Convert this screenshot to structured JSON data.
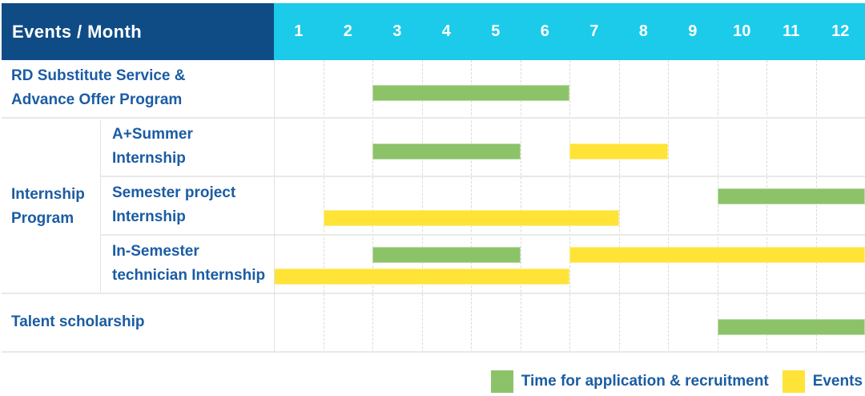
{
  "colors": {
    "navy": "#0F4C86",
    "cyan": "#1BCBE9",
    "green": "#8CC368",
    "yellow": "#FFE337",
    "text_blue": "#1B5CA4"
  },
  "header": {
    "title": "Events / Month"
  },
  "chart_data": {
    "type": "gantt",
    "unit": "month",
    "columns": [
      "1",
      "2",
      "3",
      "4",
      "5",
      "6",
      "7",
      "8",
      "9",
      "10",
      "11",
      "12"
    ],
    "group_label": "Internship\nProgram",
    "rows": [
      {
        "label": "RD Substitute Service &\nAdvance Offer Program",
        "group": null,
        "bars": [
          {
            "color": "green",
            "start": 3,
            "end": 6,
            "lane": 0
          }
        ]
      },
      {
        "label": "A+Summer\nInternship",
        "group": "Internship Program",
        "bars": [
          {
            "color": "green",
            "start": 3,
            "end": 5,
            "lane": 0
          },
          {
            "color": "yellow",
            "start": 7,
            "end": 8,
            "lane": 0
          }
        ]
      },
      {
        "label": "Semester project\nInternship",
        "group": "Internship Program",
        "bars": [
          {
            "color": "green",
            "start": 10,
            "end": 12,
            "lane": 0
          },
          {
            "color": "yellow",
            "start": 2,
            "end": 7,
            "lane": 1
          }
        ]
      },
      {
        "label": "In-Semester\ntechnician Internship",
        "group": "Internship Program",
        "bars": [
          {
            "color": "green",
            "start": 3,
            "end": 5,
            "lane": 0
          },
          {
            "color": "yellow",
            "start": 7,
            "end": 12,
            "lane": 0
          },
          {
            "color": "yellow",
            "start": 1,
            "end": 6,
            "lane": 1
          }
        ]
      },
      {
        "label": "Talent scholarship",
        "group": null,
        "bars": [
          {
            "color": "green",
            "start": 10,
            "end": 12,
            "lane": 0
          }
        ]
      }
    ],
    "legend": [
      {
        "color": "green",
        "label": "Time for application & recruitment"
      },
      {
        "color": "yellow",
        "label": "Events"
      }
    ]
  }
}
